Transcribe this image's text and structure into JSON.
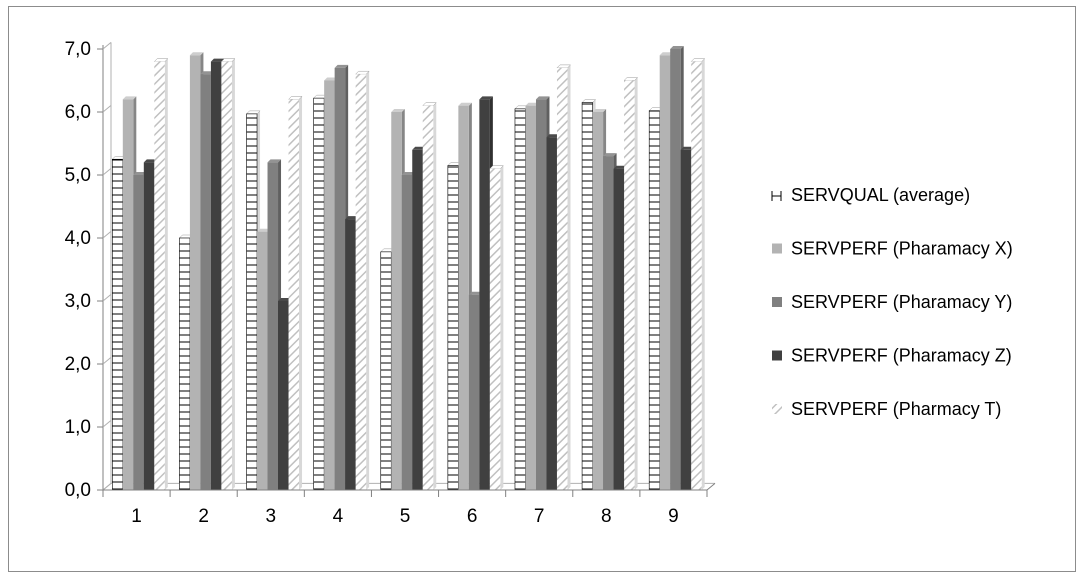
{
  "chart_data": {
    "type": "bar",
    "title": "",
    "xlabel": "",
    "ylabel": "",
    "categories": [
      "1",
      "2",
      "3",
      "4",
      "5",
      "6",
      "7",
      "8",
      "9"
    ],
    "ylim": [
      0,
      7
    ],
    "yticks": [
      "0,0",
      "1,0",
      "2,0",
      "3,0",
      "4,0",
      "5,0",
      "6,0",
      "7,0"
    ],
    "grid": false,
    "legend_position": "right",
    "series": [
      {
        "name": "SERVQUAL (average)",
        "values": [
          5.25,
          4.0,
          5.97,
          6.22,
          3.78,
          5.15,
          6.05,
          6.15,
          6.02
        ],
        "fill": "hatch-h",
        "color": "#000000"
      },
      {
        "name": "SERVPERF (Pharamacy X)",
        "values": [
          6.2,
          6.9,
          4.1,
          6.5,
          6.0,
          6.1,
          6.1,
          6.0,
          6.9
        ],
        "fill": "solid",
        "color": "#b3b3b3"
      },
      {
        "name": "SERVPERF (Pharamacy Y)",
        "values": [
          5.0,
          6.6,
          5.2,
          6.7,
          5.0,
          3.1,
          6.2,
          5.3,
          7.0
        ],
        "fill": "solid",
        "color": "#808080"
      },
      {
        "name": "SERVPERF (Pharamacy Z)",
        "values": [
          5.2,
          6.8,
          3.0,
          4.3,
          5.4,
          6.2,
          5.6,
          5.1,
          5.4
        ],
        "fill": "solid",
        "color": "#404040"
      },
      {
        "name": "SERVPERF (Pharmacy T)",
        "values": [
          6.8,
          6.8,
          6.2,
          6.6,
          6.1,
          5.1,
          6.7,
          6.5,
          6.8
        ],
        "fill": "hatch-d",
        "color": "#c8c8c8"
      }
    ]
  }
}
